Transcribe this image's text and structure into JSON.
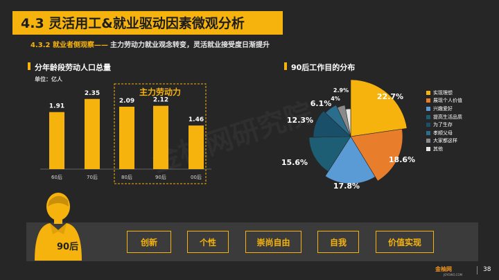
{
  "header": {
    "title": "4.3 灵活用工&就业驱动因素微观分析",
    "subtitle_code": "4.3.2 就业者侧观察——",
    "subtitle_text": "主力劳动力就业观念转变，灵活就业接受度日渐提升"
  },
  "left_panel": {
    "title": "分年龄段劳动人口总量",
    "unit": "单位：亿人",
    "highlight_label": "主力劳动力"
  },
  "right_panel": {
    "title": "90后工作目的分布"
  },
  "watermark": "金柚网研究院",
  "colors": {
    "accent": "#f6b30d",
    "background": "#262626",
    "strip": "#3b3b3b"
  },
  "chart_data": [
    {
      "type": "bar",
      "title": "分年龄段劳动人口总量",
      "unit": "单位：亿人",
      "categories": [
        "60后",
        "70后",
        "80后",
        "90后",
        "00后"
      ],
      "values": [
        1.91,
        2.35,
        2.09,
        2.12,
        1.46
      ],
      "value_labels": [
        "1.91",
        "2.35",
        "2.09",
        "2.12",
        "1.46"
      ],
      "ylim": [
        0,
        2.6
      ],
      "grid": false,
      "highlight": {
        "categories": [
          "80后",
          "90后"
        ],
        "label": "主力劳动力"
      }
    },
    {
      "type": "pie",
      "title": "90后工作目的分布",
      "legend_position": "right",
      "slices": [
        {
          "label": "实现理想",
          "value": 22.7,
          "color": "#f6b30d",
          "value_label": "22.7%"
        },
        {
          "label": "展现个人价值",
          "value": 18.6,
          "color": "#e87d2b",
          "value_label": "18.6%"
        },
        {
          "label": "兴趣爱好",
          "value": 17.8,
          "color": "#5b9bd5",
          "value_label": "17.8%"
        },
        {
          "label": "提高生活品质",
          "value": 15.6,
          "color": "#1d5e75",
          "value_label": "15.6%"
        },
        {
          "label": "为了生存",
          "value": 12.3,
          "color": "#1a4f6a",
          "value_label": "12.3%"
        },
        {
          "label": "孝顺父母",
          "value": 6.1,
          "color": "#2b6d8c",
          "value_label": "6.1%"
        },
        {
          "label": "大家都这样",
          "value": 4.0,
          "color": "#8a8a8a",
          "value_label": "4%"
        },
        {
          "label": "其他",
          "value": 2.9,
          "color": "#e6e6e6",
          "value_label": "2.9%"
        }
      ]
    }
  ],
  "bottom": {
    "avatar_label": "90后",
    "tags": [
      "创新",
      "个性",
      "崇尚自由",
      "自我",
      "价值实现"
    ]
  },
  "footer": {
    "logo": "金柚网",
    "logo_sub": "JOYOWO.COM",
    "page": "38"
  }
}
